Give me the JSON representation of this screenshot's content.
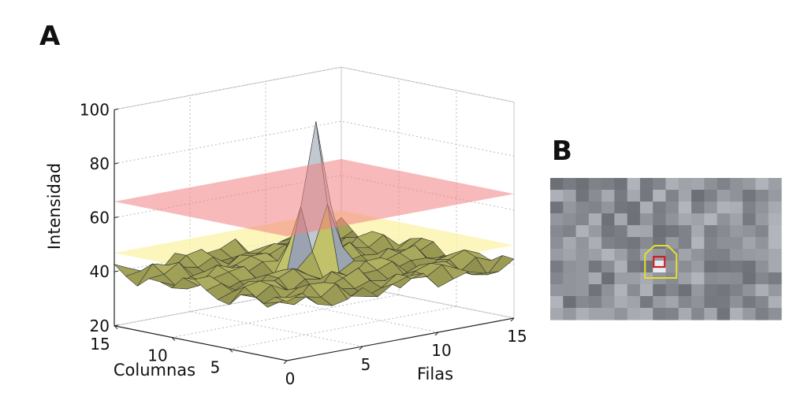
{
  "panels": {
    "a_letter": "A",
    "b_letter": "B"
  },
  "chart_data": {
    "type": "surface3d",
    "title": "",
    "zlabel": "Intensidad",
    "xlabel": "Filas",
    "ylabel": "Columnas",
    "x_ticks": [
      "0",
      "5",
      "10",
      "15"
    ],
    "y_ticks": [
      "15",
      "10",
      "5"
    ],
    "z_ticks": [
      "20",
      "40",
      "60",
      "80",
      "100"
    ],
    "xlim": [
      0,
      15
    ],
    "ylim": [
      0,
      15
    ],
    "zlim": [
      20,
      100
    ],
    "grid": true,
    "peak": {
      "fila": 8,
      "columna": 8,
      "intensidad": 92
    },
    "baseline_intensity": 40,
    "threshold_planes": [
      {
        "level": 66,
        "color": "#f08080"
      },
      {
        "level": 47,
        "color": "#fbf3a6"
      }
    ],
    "colors": {
      "surface_low": "#7f8a98",
      "surface_high": "#d0d6de",
      "mesh": "#2d2d2d",
      "under_plane": "#c2c26a"
    }
  },
  "inset": {
    "type": "pixel_image",
    "rows": 12,
    "cols": 18,
    "bright_pixel": {
      "row": 7,
      "col": 8
    },
    "colors": {
      "inner_outline": "#cc2020",
      "outer_outline": "#e6df2a"
    }
  }
}
